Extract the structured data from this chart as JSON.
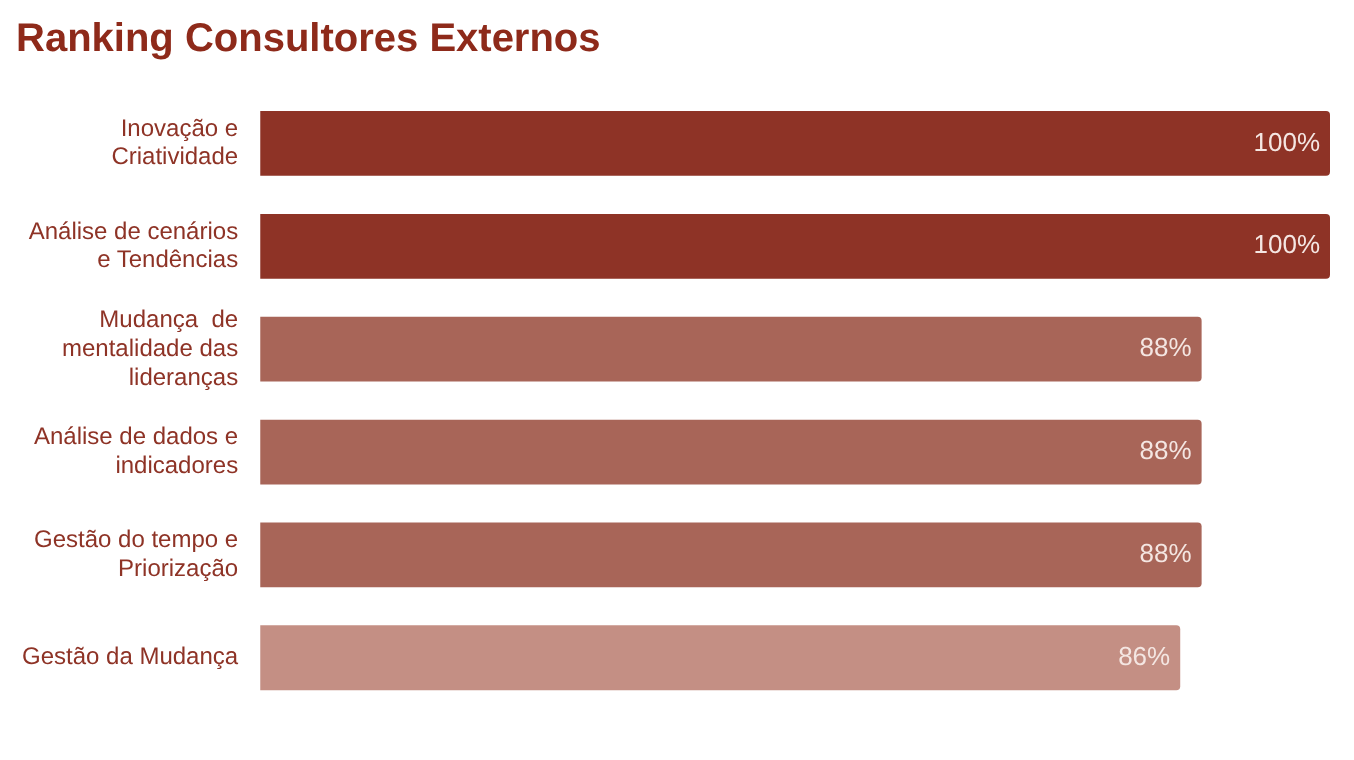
{
  "chart_data": {
    "type": "bar",
    "orientation": "horizontal",
    "title": "Ranking Consultores Externos",
    "categories": [
      "Inovação e\nCriatividade",
      "Análise de cenários\ne Tendências",
      "Mudança  de\nmentalidade das\nlideranças",
      "Análise de dados e\nindicadores",
      "Gestão do tempo e\nPriorização",
      "Gestão da Mudança"
    ],
    "values": [
      100,
      100,
      88,
      88,
      88,
      86
    ],
    "colors": [
      "#8e3326",
      "#8e3326",
      "#a86558",
      "#a86558",
      "#a86558",
      "#c48f84"
    ],
    "value_labels": [
      "100%",
      "100%",
      "88%",
      "88%",
      "88%",
      "86%"
    ],
    "legend": false
  }
}
